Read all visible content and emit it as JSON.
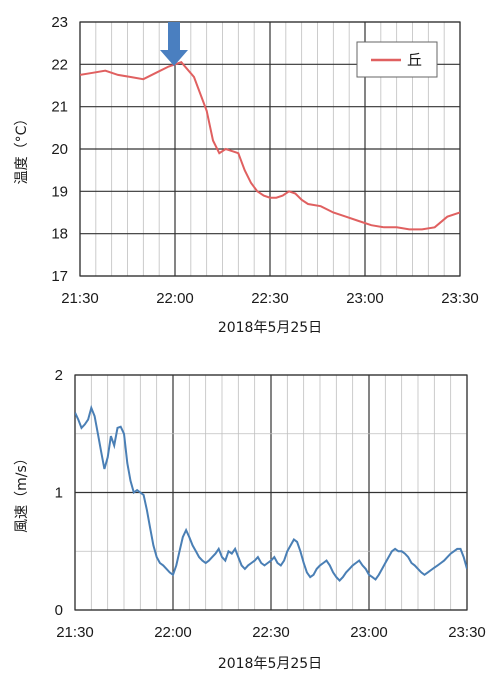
{
  "chart_data": [
    {
      "type": "line",
      "title": "",
      "xlabel": "2018年5月25日",
      "ylabel": "温度（°C）",
      "x_ticks": [
        "21:30",
        "22:00",
        "22:30",
        "23:00",
        "23:30"
      ],
      "x_range_minutes": [
        0,
        120
      ],
      "ylim": [
        17,
        23
      ],
      "y_ticks": [
        "17",
        "18",
        "19",
        "20",
        "21",
        "22",
        "23"
      ],
      "grid": true,
      "legend_position": "top-right",
      "annotation": "arrow-down-at-22:00",
      "series": [
        {
          "name": "丘",
          "color": "#e06060",
          "x_minutes": [
            0,
            4,
            8,
            12,
            16,
            20,
            24,
            28,
            32,
            36,
            40,
            42,
            44,
            46,
            48,
            50,
            52,
            54,
            56,
            58,
            60,
            62,
            64,
            66,
            68,
            70,
            72,
            76,
            80,
            84,
            88,
            92,
            96,
            100,
            104,
            108,
            112,
            116,
            120
          ],
          "values": [
            21.75,
            21.8,
            21.85,
            21.75,
            21.7,
            21.65,
            21.8,
            21.95,
            22.05,
            21.7,
            20.9,
            20.2,
            19.9,
            20.0,
            19.95,
            19.9,
            19.5,
            19.2,
            19.0,
            18.9,
            18.85,
            18.85,
            18.9,
            19.0,
            18.95,
            18.8,
            18.7,
            18.65,
            18.5,
            18.4,
            18.3,
            18.2,
            18.15,
            18.15,
            18.1,
            18.1,
            18.15,
            18.4,
            18.5
          ]
        }
      ]
    },
    {
      "type": "line",
      "title": "",
      "xlabel": "2018年5月25日",
      "ylabel": "風速（m/s）",
      "x_ticks": [
        "21:30",
        "22:00",
        "22:30",
        "23:00",
        "23:30"
      ],
      "x_range_minutes": [
        0,
        120
      ],
      "ylim": [
        0,
        2
      ],
      "y_ticks": [
        "0",
        "1",
        "2"
      ],
      "grid": true,
      "series": [
        {
          "color": "#4a7fb5",
          "x_minutes": [
            0,
            1,
            2,
            3,
            4,
            5,
            6,
            7,
            8,
            9,
            10,
            11,
            12,
            13,
            14,
            15,
            16,
            17,
            18,
            19,
            20,
            21,
            22,
            23,
            24,
            25,
            26,
            27,
            28,
            29,
            30,
            31,
            32,
            33,
            34,
            35,
            36,
            37,
            38,
            39,
            40,
            41,
            42,
            43,
            44,
            45,
            46,
            47,
            48,
            49,
            50,
            51,
            52,
            53,
            54,
            55,
            56,
            57,
            58,
            59,
            60,
            61,
            62,
            63,
            64,
            65,
            66,
            67,
            68,
            69,
            70,
            71,
            72,
            73,
            74,
            75,
            76,
            77,
            78,
            79,
            80,
            81,
            82,
            83,
            84,
            85,
            86,
            87,
            88,
            89,
            90,
            91,
            92,
            93,
            94,
            95,
            96,
            97,
            98,
            99,
            100,
            101,
            102,
            103,
            104,
            105,
            106,
            107,
            108,
            109,
            110,
            111,
            112,
            113,
            114,
            115,
            116,
            117,
            118,
            119,
            120
          ],
          "values": [
            1.68,
            1.62,
            1.55,
            1.58,
            1.62,
            1.72,
            1.65,
            1.5,
            1.35,
            1.2,
            1.3,
            1.48,
            1.4,
            1.55,
            1.56,
            1.5,
            1.25,
            1.1,
            1.0,
            1.02,
            1.0,
            0.98,
            0.85,
            0.7,
            0.55,
            0.45,
            0.4,
            0.38,
            0.35,
            0.32,
            0.3,
            0.38,
            0.5,
            0.62,
            0.68,
            0.62,
            0.55,
            0.5,
            0.45,
            0.42,
            0.4,
            0.42,
            0.45,
            0.48,
            0.52,
            0.45,
            0.42,
            0.5,
            0.48,
            0.52,
            0.45,
            0.38,
            0.35,
            0.38,
            0.4,
            0.42,
            0.45,
            0.4,
            0.38,
            0.4,
            0.42,
            0.45,
            0.4,
            0.38,
            0.42,
            0.5,
            0.55,
            0.6,
            0.58,
            0.5,
            0.4,
            0.32,
            0.28,
            0.3,
            0.35,
            0.38,
            0.4,
            0.42,
            0.38,
            0.32,
            0.28,
            0.25,
            0.28,
            0.32,
            0.35,
            0.38,
            0.4,
            0.42,
            0.38,
            0.35,
            0.3,
            0.28,
            0.26,
            0.3,
            0.35,
            0.4,
            0.45,
            0.5,
            0.52,
            0.5,
            0.5,
            0.48,
            0.45,
            0.4,
            0.38,
            0.35,
            0.32,
            0.3,
            0.32,
            0.34,
            0.36,
            0.38,
            0.4,
            0.42,
            0.45,
            0.48,
            0.5,
            0.52,
            0.52,
            0.45,
            0.35
          ]
        }
      ]
    }
  ]
}
